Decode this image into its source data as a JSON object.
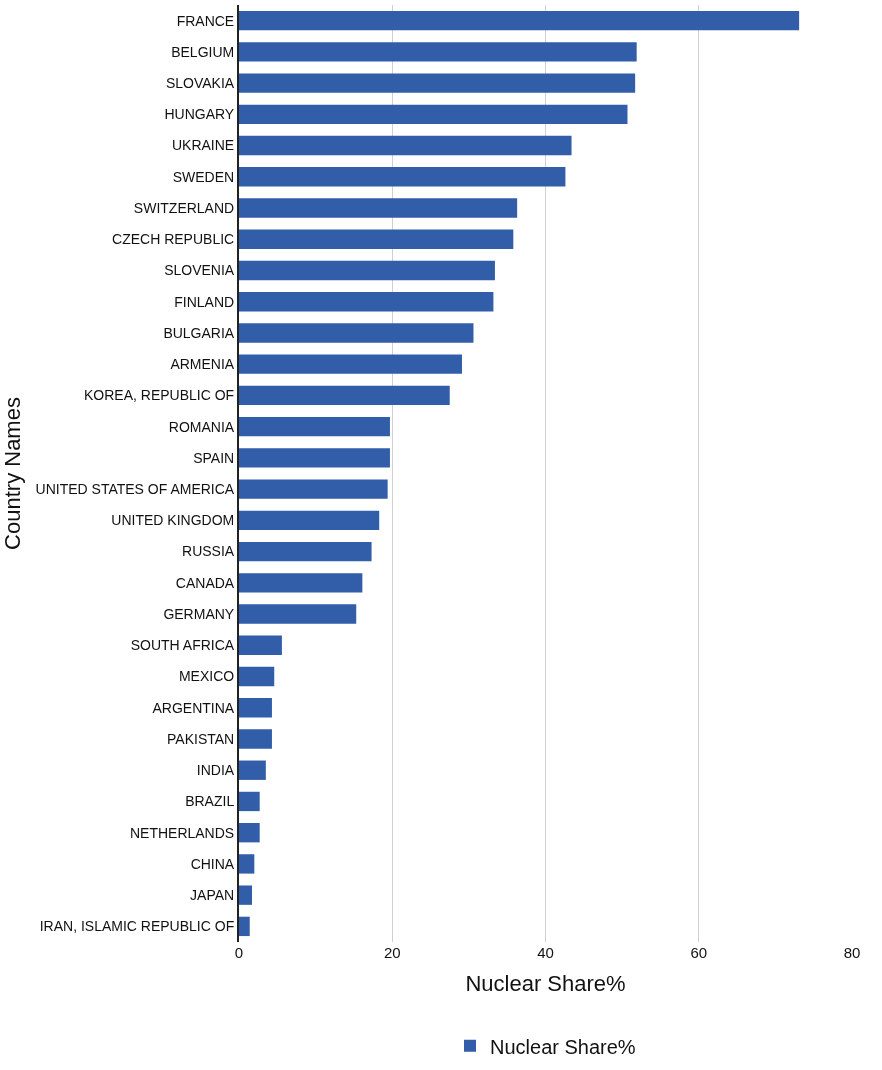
{
  "chart_data": {
    "type": "bar",
    "orientation": "horizontal",
    "xlabel": "Nuclear Share%",
    "ylabel": "Country Names",
    "categories": [
      "FRANCE",
      "BELGIUM",
      "SLOVAKIA",
      "HUNGARY",
      "UKRAINE",
      "SWEDEN",
      "SWITZERLAND",
      "CZECH REPUBLIC",
      "SLOVENIA",
      "FINLAND",
      "BULGARIA",
      "ARMENIA",
      "KOREA, REPUBLIC OF",
      "ROMANIA",
      "SPAIN",
      "UNITED STATES OF AMERICA",
      "UNITED KINGDOM",
      "RUSSIA",
      "CANADA",
      "GERMANY",
      "SOUTH AFRICA",
      "MEXICO",
      "ARGENTINA",
      "PAKISTAN",
      "INDIA",
      "BRAZIL",
      "NETHERLANDS",
      "CHINA",
      "JAPAN",
      "IRAN, ISLAMIC REPUBLIC OF"
    ],
    "series": [
      {
        "name": "Nuclear Share%",
        "color": "#325da8",
        "values": [
          73.1,
          51.9,
          51.7,
          50.7,
          43.4,
          42.6,
          36.3,
          35.8,
          33.4,
          33.2,
          30.6,
          29.1,
          27.5,
          19.7,
          19.7,
          19.4,
          18.3,
          17.3,
          16.1,
          15.3,
          5.6,
          4.6,
          4.3,
          4.3,
          3.5,
          2.7,
          2.7,
          2.0,
          1.7,
          1.4
        ]
      }
    ],
    "xlim": [
      0,
      80
    ],
    "xticks": [
      0,
      20,
      40,
      60,
      80
    ],
    "grid": "x",
    "legend": "bottom"
  }
}
